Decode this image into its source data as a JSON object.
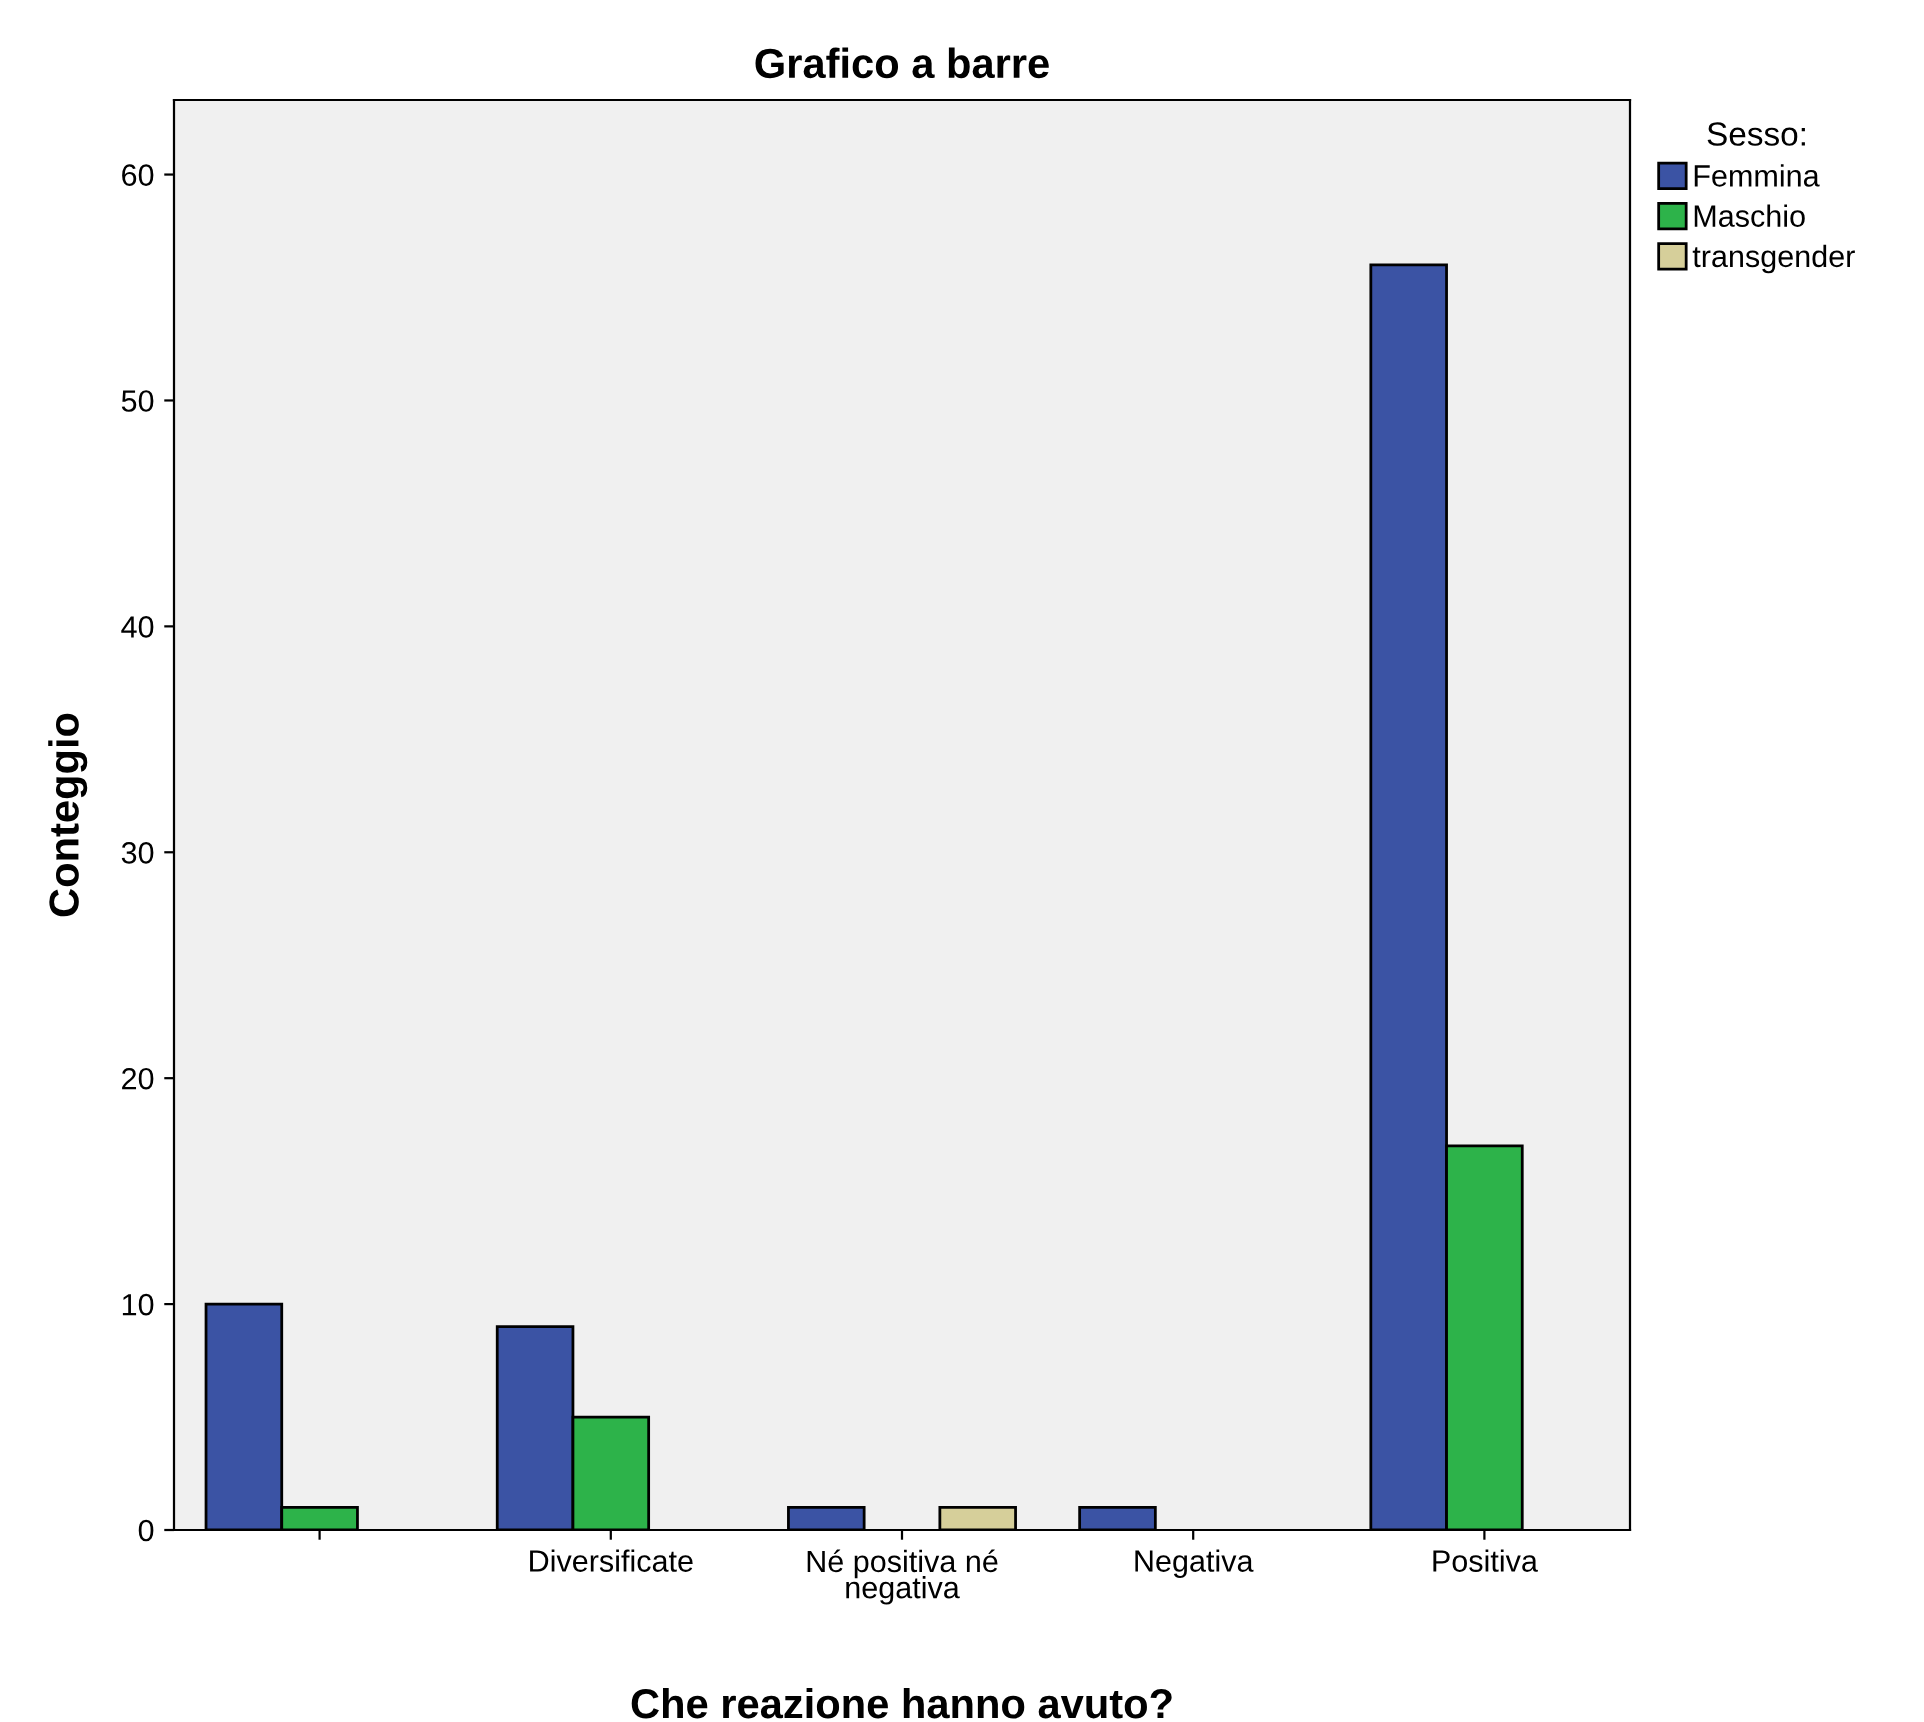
{
  "chart_data": {
    "type": "bar",
    "title": "Grafico a barre",
    "xlabel": "Che reazione hanno avuto?",
    "ylabel": "Conteggio",
    "legend_title": "Sesso:",
    "categories": [
      null,
      "Diversificate",
      "Né positiva né\nnegativa",
      "Negativa",
      "Positiva"
    ],
    "series": [
      {
        "name": "Femmina",
        "color": "#3b53a4",
        "values": [
          10,
          9,
          1,
          1,
          56
        ]
      },
      {
        "name": "Maschio",
        "color": "#2db34a",
        "values": [
          1,
          5,
          null,
          null,
          17
        ]
      },
      {
        "name": "transgender",
        "color": "#d6cf9a",
        "values": [
          null,
          null,
          1,
          null,
          null
        ]
      }
    ],
    "ylim": [
      0,
      63.3
    ],
    "yticks": [
      0,
      10,
      20,
      30,
      40,
      50,
      60
    ],
    "grid": false,
    "legend": "top right"
  }
}
